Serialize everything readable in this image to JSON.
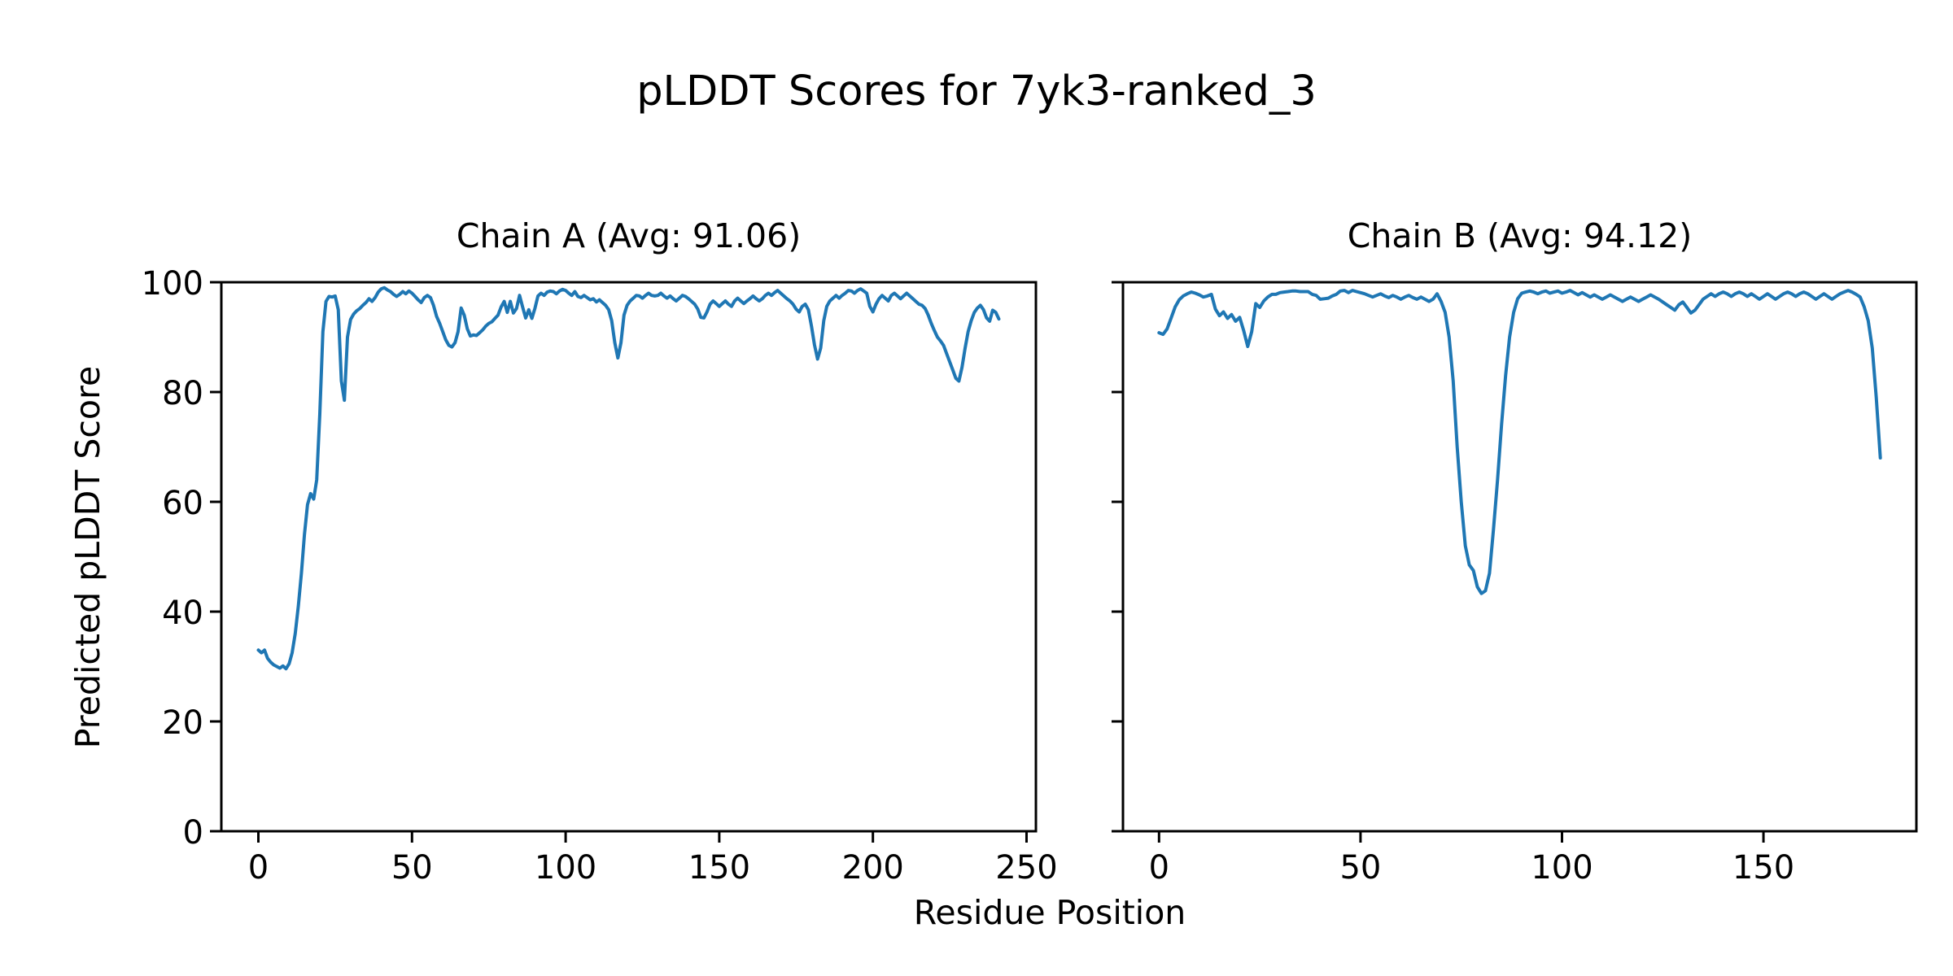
{
  "figure": {
    "title": "pLDDT Scores for 7yk3-ranked_3",
    "xlabel": "Residue Position",
    "ylabel": "Predicted pLDDT Score",
    "background_color": "#ffffff",
    "line_color": "#1f77b4",
    "axis_color": "#000000"
  },
  "chart_data": {
    "type": "line",
    "title": "pLDDT Scores for 7yk3-ranked_3",
    "xlabel": "Residue Position",
    "ylabel": "Predicted pLDDT Score",
    "grid": false,
    "legend": null,
    "line_color": "#1f77b4",
    "subplots": [
      {
        "id": "chain-a",
        "title": "Chain A (Avg: 91.06)",
        "chain": "A",
        "avg": 91.06,
        "n_residues": 242,
        "x_start": 0,
        "xlim": [
          -12.05,
          253.05
        ],
        "ylim": [
          0,
          100
        ],
        "xticks": [
          0,
          50,
          100,
          150,
          200,
          250
        ],
        "yticks": [
          0,
          20,
          40,
          60,
          80,
          100
        ],
        "show_ytick_labels": true,
        "values": [
          33,
          32.5,
          33,
          31.5,
          30.8,
          30.3,
          30,
          29.7,
          30.1,
          29.6,
          30.5,
          32.5,
          36,
          41,
          47,
          54,
          59.5,
          61.5,
          60.5,
          64,
          76,
          91,
          96.5,
          97.4,
          97.3,
          97.5,
          95,
          82,
          78.5,
          90,
          93.2,
          94.2,
          94.8,
          95.2,
          95.8,
          96.3,
          97,
          96.5,
          97.2,
          98.2,
          98.8,
          99,
          98.6,
          98.3,
          97.8,
          97.4,
          97.8,
          98.3,
          97.9,
          98.4,
          98,
          97.4,
          96.8,
          96.3,
          97.2,
          97.6,
          97.2,
          95.8,
          93.8,
          92.5,
          91,
          89.5,
          88.5,
          88.2,
          89,
          91,
          95.3,
          94,
          91.5,
          90.2,
          90.4,
          90.3,
          90.8,
          91.3,
          92,
          92.5,
          92.8,
          93.4,
          94,
          95.5,
          96.5,
          94.5,
          96.5,
          94.4,
          95.2,
          97.6,
          95.5,
          93.5,
          95,
          93.4,
          95.2,
          97.5,
          98,
          97.6,
          98.2,
          98.4,
          98.3,
          97.9,
          98.4,
          98.7,
          98.5,
          98,
          97.6,
          98.3,
          97.4,
          97.2,
          97.6,
          97.2,
          96.8,
          97,
          96.4,
          96.8,
          96.3,
          95.8,
          95,
          93,
          89,
          86.2,
          89,
          94,
          95.8,
          96.6,
          97.1,
          97.6,
          97.5,
          97.1,
          97.6,
          98,
          97.6,
          97.5,
          97.6,
          98,
          97.5,
          97.1,
          97.5,
          97,
          96.6,
          97.1,
          97.6,
          97.4,
          97,
          96.5,
          96,
          95.1,
          93.6,
          93.5,
          94.6,
          96,
          96.6,
          96.1,
          95.6,
          96.1,
          96.6,
          96,
          95.6,
          96.6,
          97.1,
          96.6,
          96.1,
          96.6,
          97,
          97.5,
          97,
          96.6,
          97,
          97.6,
          98,
          97.6,
          98.1,
          98.5,
          98,
          97.5,
          97,
          96.6,
          96,
          95.1,
          94.6,
          95.6,
          96,
          95,
          92,
          88.6,
          86,
          88,
          93,
          95.6,
          96.6,
          97.1,
          97.6,
          97.1,
          97.6,
          98,
          98.5,
          98.4,
          98,
          98.5,
          98.8,
          98.4,
          98,
          95.6,
          94.6,
          96,
          97,
          97.6,
          97.1,
          96.6,
          97.6,
          98,
          97.5,
          97,
          97.5,
          98,
          97.5,
          97,
          96.5,
          96,
          95.8,
          95.2,
          94,
          92.5,
          91.2,
          90,
          89.3,
          88.5,
          87,
          85.5,
          84,
          82.5,
          82,
          84.5,
          88,
          91,
          93,
          94.5,
          95.3,
          95.8,
          95,
          93.5,
          92.9,
          94.9,
          94.5,
          93.3
        ]
      },
      {
        "id": "chain-b",
        "title": "Chain B (Avg: 94.12)",
        "chain": "B",
        "avg": 94.12,
        "n_residues": 180,
        "x_start": 0,
        "xlim": [
          -8.95,
          187.95
        ],
        "ylim": [
          0,
          100
        ],
        "xticks": [
          0,
          50,
          100,
          150
        ],
        "yticks": [
          0,
          20,
          40,
          60,
          80,
          100
        ],
        "show_ytick_labels": false,
        "values": [
          90.8,
          90.5,
          91.5,
          93.5,
          95.5,
          96.8,
          97.5,
          97.9,
          98.2,
          98,
          97.7,
          97.3,
          97.5,
          97.8,
          95.1,
          93.9,
          94.6,
          93.4,
          94.1,
          92.9,
          93.6,
          91.2,
          88.3,
          91,
          96.1,
          95.4,
          96.6,
          97.3,
          97.8,
          97.8,
          98.1,
          98.2,
          98.3,
          98.4,
          98.4,
          98.3,
          98.3,
          98.3,
          97.8,
          97.6,
          96.9,
          97,
          97.1,
          97.5,
          97.8,
          98.4,
          98.5,
          98.1,
          98.5,
          98.3,
          98.1,
          97.9,
          97.6,
          97.3,
          97.6,
          97.9,
          97.5,
          97.2,
          97.6,
          97.3,
          96.9,
          97.3,
          97.6,
          97.2,
          96.9,
          97.3,
          96.9,
          96.5,
          96.9,
          97.9,
          96.5,
          94.5,
          90,
          82,
          70,
          60,
          52,
          48.5,
          47.5,
          44.5,
          43.3,
          43.8,
          47,
          55,
          64,
          74,
          83,
          90,
          94.5,
          97,
          98,
          98.2,
          98.4,
          98.2,
          97.9,
          98.2,
          98.4,
          98,
          98.2,
          98.4,
          98,
          98.2,
          98.5,
          98.1,
          97.7,
          98.1,
          97.7,
          97.3,
          97.7,
          97.3,
          96.9,
          97.3,
          97.7,
          97.3,
          96.9,
          96.5,
          96.9,
          97.3,
          96.9,
          96.5,
          96.9,
          97.3,
          97.7,
          97.3,
          96.9,
          96.4,
          95.9,
          95.4,
          94.9,
          95.9,
          96.4,
          95.4,
          94.4,
          94.9,
          95.9,
          96.9,
          97.4,
          97.9,
          97.4,
          97.9,
          98.2,
          97.9,
          97.4,
          97.9,
          98.2,
          97.9,
          97.4,
          97.9,
          97.4,
          96.9,
          97.4,
          97.9,
          97.4,
          96.9,
          97.4,
          97.9,
          98.2,
          97.9,
          97.4,
          97.9,
          98.2,
          97.9,
          97.4,
          96.9,
          97.4,
          97.9,
          97.4,
          96.9,
          97.4,
          97.9,
          98.2,
          98.5,
          98.2,
          97.8,
          97.3,
          95.5,
          93,
          88,
          79,
          68
        ]
      }
    ]
  }
}
